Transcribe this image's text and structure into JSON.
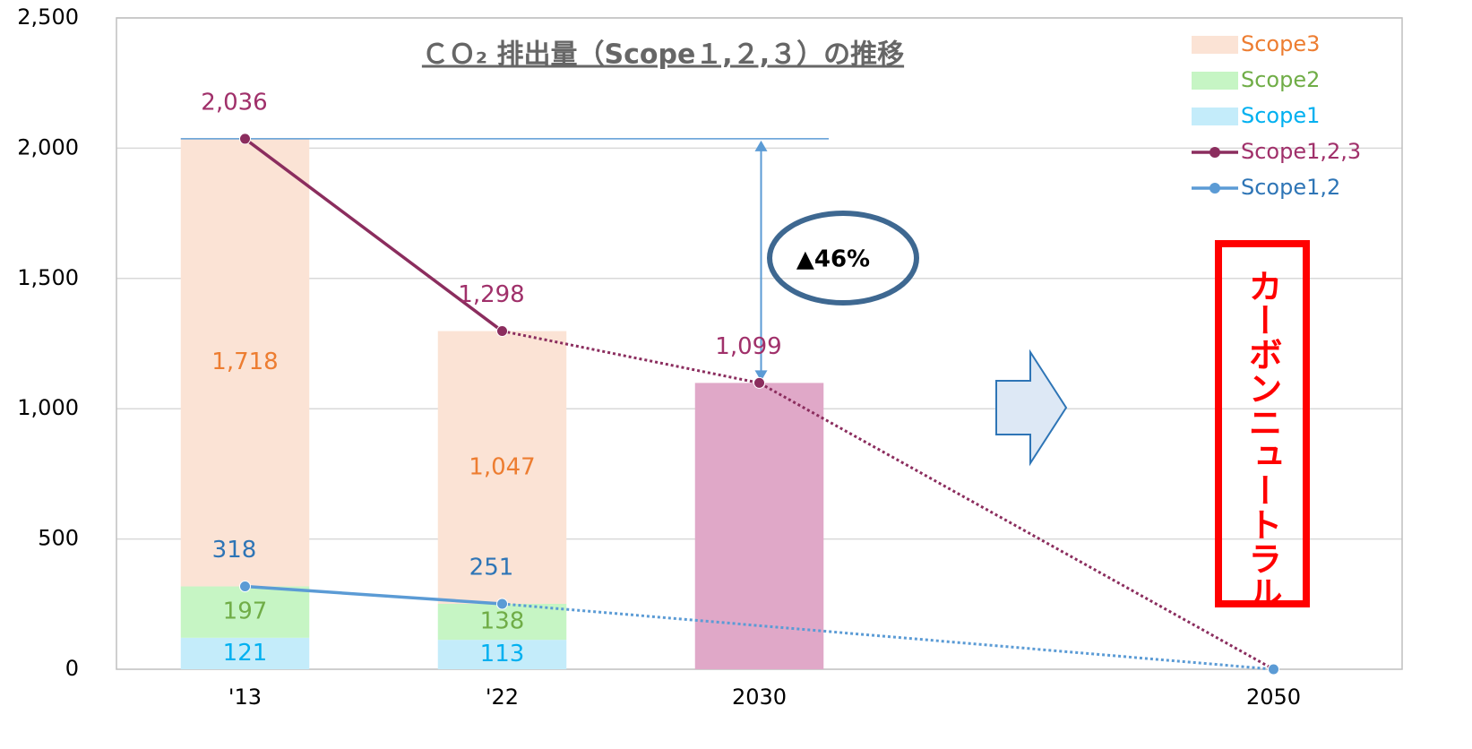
{
  "chart_data": {
    "type": "bar",
    "title": "ＣＯ₂ 排出量（Scope１,２,３）の推移",
    "categories": [
      "'13",
      "'22",
      "2030",
      null,
      "2050"
    ],
    "ylim": [
      0,
      2500
    ],
    "yticks": [
      0,
      500,
      {
        "value": 1000,
        "label": "1,000"
      },
      {
        "value": 1500,
        "label": "1,500"
      },
      {
        "value": 2000,
        "label": "2,000"
      },
      {
        "value": 2500,
        "label": "2,500"
      }
    ],
    "grid": true,
    "legend": "top-right",
    "series": [
      {
        "name": "Scope3",
        "kind": "bar",
        "color": "#fbe3d5",
        "label_color": "#ed7d31",
        "values": [
          1718,
          1047,
          null,
          null,
          null
        ],
        "value_labels": [
          "1,718",
          "1,047",
          null,
          null,
          null
        ]
      },
      {
        "name": "Scope2",
        "kind": "bar",
        "color": "#c6f5c4",
        "label_color": "#70ad47",
        "values": [
          197,
          138,
          null,
          null,
          null
        ]
      },
      {
        "name": "Scope1",
        "kind": "bar",
        "color": "#c4ecfa",
        "label_color": "#00b0f0",
        "values": [
          121,
          113,
          null,
          null,
          null
        ]
      },
      {
        "kind": "bar",
        "color": "#e0a8c8",
        "values": [
          null,
          null,
          1099,
          null,
          null
        ]
      },
      {
        "name": "Scope1,2,3",
        "kind": "line",
        "color": "#8b2d5e",
        "label_color": "#a0306a",
        "values": [
          2036,
          1298,
          1099,
          null,
          0
        ],
        "value_labels": [
          "2,036",
          "1,298",
          "1,099",
          null,
          null
        ],
        "dotted_from": 1,
        "connect_gaps": true
      },
      {
        "name": "Scope1,2",
        "kind": "line",
        "color": "#5b9bd5",
        "label_color": "#2e75b6",
        "values": [
          318,
          251,
          null,
          null,
          0
        ],
        "dotted_from": 1,
        "connect_gaps": true
      }
    ],
    "annotations": {
      "reduction": "▲46%",
      "goal": "カーボンニュートラル"
    }
  }
}
